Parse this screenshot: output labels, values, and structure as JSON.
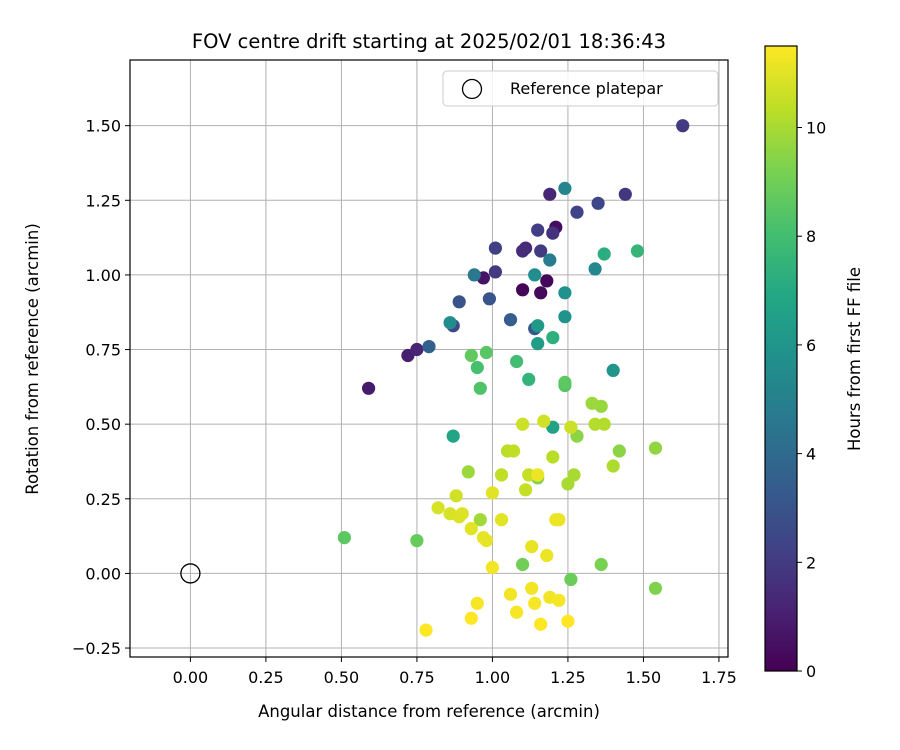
{
  "chart_data": {
    "type": "scatter",
    "title": "FOV centre drift starting at 2025/02/01 18:36:43",
    "xlabel": "Angular distance from reference (arcmin)",
    "ylabel": "Rotation from reference (arcmin)",
    "xlim": [
      -0.2,
      1.78
    ],
    "ylim": [
      -0.28,
      1.72
    ],
    "xticks": [
      0.0,
      0.25,
      0.5,
      0.75,
      1.0,
      1.25,
      1.5,
      1.75
    ],
    "xtick_labels": [
      "0.00",
      "0.25",
      "0.50",
      "0.75",
      "1.00",
      "1.25",
      "1.50",
      "1.75"
    ],
    "yticks": [
      -0.25,
      0.0,
      0.25,
      0.5,
      0.75,
      1.0,
      1.25,
      1.5
    ],
    "ytick_labels": [
      "−0.25",
      "0.00",
      "0.25",
      "0.50",
      "0.75",
      "1.00",
      "1.25",
      "1.50"
    ],
    "grid": true,
    "legend": {
      "position": "upper right",
      "entries": [
        "Reference platepar"
      ]
    },
    "reference_point": {
      "x": 0.0,
      "y": 0.0
    },
    "colorbar": {
      "label": "Hours from first FF file",
      "colormap": "viridis",
      "range": [
        0,
        11.5
      ],
      "ticks": [
        0,
        2,
        4,
        6,
        8,
        10
      ],
      "tick_labels": [
        "0",
        "2",
        "4",
        "6",
        "8",
        "10"
      ]
    },
    "points": [
      {
        "x": 1.1,
        "y": 0.95,
        "c": 0.1
      },
      {
        "x": 1.18,
        "y": 0.98,
        "c": 0.2
      },
      {
        "x": 1.16,
        "y": 0.94,
        "c": 0.3
      },
      {
        "x": 1.21,
        "y": 1.16,
        "c": 0.4
      },
      {
        "x": 0.97,
        "y": 0.99,
        "c": 0.6
      },
      {
        "x": 0.59,
        "y": 0.62,
        "c": 0.9
      },
      {
        "x": 0.72,
        "y": 0.73,
        "c": 1.0
      },
      {
        "x": 0.75,
        "y": 0.75,
        "c": 1.2
      },
      {
        "x": 1.19,
        "y": 1.27,
        "c": 1.3
      },
      {
        "x": 1.11,
        "y": 1.09,
        "c": 1.4
      },
      {
        "x": 1.1,
        "y": 1.08,
        "c": 1.5
      },
      {
        "x": 1.2,
        "y": 1.14,
        "c": 1.7
      },
      {
        "x": 1.44,
        "y": 1.27,
        "c": 1.9
      },
      {
        "x": 1.63,
        "y": 1.5,
        "c": 2.0
      },
      {
        "x": 1.16,
        "y": 1.08,
        "c": 2.0
      },
      {
        "x": 1.01,
        "y": 1.01,
        "c": 2.0
      },
      {
        "x": 1.15,
        "y": 1.15,
        "c": 2.1
      },
      {
        "x": 1.01,
        "y": 1.09,
        "c": 2.2
      },
      {
        "x": 1.28,
        "y": 1.21,
        "c": 2.3
      },
      {
        "x": 1.35,
        "y": 1.24,
        "c": 2.5
      },
      {
        "x": 0.87,
        "y": 0.83,
        "c": 2.5
      },
      {
        "x": 0.89,
        "y": 0.91,
        "c": 3.0
      },
      {
        "x": 0.99,
        "y": 0.92,
        "c": 3.0
      },
      {
        "x": 1.14,
        "y": 0.82,
        "c": 3.1
      },
      {
        "x": 1.06,
        "y": 0.85,
        "c": 3.4
      },
      {
        "x": 0.79,
        "y": 0.76,
        "c": 3.6
      },
      {
        "x": 0.94,
        "y": 1.0,
        "c": 4.6
      },
      {
        "x": 1.19,
        "y": 1.05,
        "c": 4.8
      },
      {
        "x": 1.24,
        "y": 1.29,
        "c": 5.2
      },
      {
        "x": 1.34,
        "y": 1.02,
        "c": 5.3
      },
      {
        "x": 1.14,
        "y": 1.0,
        "c": 5.6
      },
      {
        "x": 0.86,
        "y": 0.84,
        "c": 5.6
      },
      {
        "x": 1.24,
        "y": 0.94,
        "c": 5.8
      },
      {
        "x": 1.24,
        "y": 0.86,
        "c": 5.9
      },
      {
        "x": 1.4,
        "y": 0.68,
        "c": 6.0
      },
      {
        "x": 1.15,
        "y": 0.83,
        "c": 6.2
      },
      {
        "x": 1.15,
        "y": 0.77,
        "c": 6.4
      },
      {
        "x": 1.2,
        "y": 0.49,
        "c": 6.6
      },
      {
        "x": 0.87,
        "y": 0.46,
        "c": 6.8
      },
      {
        "x": 1.37,
        "y": 1.07,
        "c": 7.2
      },
      {
        "x": 1.2,
        "y": 0.79,
        "c": 7.3
      },
      {
        "x": 1.48,
        "y": 1.08,
        "c": 7.6
      },
      {
        "x": 1.12,
        "y": 0.65,
        "c": 7.5
      },
      {
        "x": 1.08,
        "y": 0.71,
        "c": 8.0
      },
      {
        "x": 0.95,
        "y": 0.69,
        "c": 8.1
      },
      {
        "x": 0.96,
        "y": 0.62,
        "c": 8.3
      },
      {
        "x": 1.24,
        "y": 0.63,
        "c": 8.4
      },
      {
        "x": 1.24,
        "y": 0.64,
        "c": 8.6
      },
      {
        "x": 0.93,
        "y": 0.73,
        "c": 8.7
      },
      {
        "x": 0.98,
        "y": 0.74,
        "c": 8.5
      },
      {
        "x": 0.51,
        "y": 0.12,
        "c": 8.6
      },
      {
        "x": 0.75,
        "y": 0.11,
        "c": 8.8
      },
      {
        "x": 1.26,
        "y": -0.02,
        "c": 8.9
      },
      {
        "x": 1.1,
        "y": 0.03,
        "c": 9.0
      },
      {
        "x": 1.36,
        "y": 0.03,
        "c": 9.2
      },
      {
        "x": 1.54,
        "y": -0.05,
        "c": 9.3
      },
      {
        "x": 1.15,
        "y": 0.32,
        "c": 9.4
      },
      {
        "x": 1.28,
        "y": 0.46,
        "c": 9.5
      },
      {
        "x": 1.42,
        "y": 0.41,
        "c": 9.5
      },
      {
        "x": 1.54,
        "y": 0.42,
        "c": 9.6
      },
      {
        "x": 1.36,
        "y": 0.56,
        "c": 9.7
      },
      {
        "x": 1.33,
        "y": 0.57,
        "c": 9.8
      },
      {
        "x": 0.92,
        "y": 0.34,
        "c": 9.8
      },
      {
        "x": 0.96,
        "y": 0.18,
        "c": 9.9
      },
      {
        "x": 1.25,
        "y": 0.3,
        "c": 10.0
      },
      {
        "x": 1.27,
        "y": 0.33,
        "c": 10.0
      },
      {
        "x": 1.4,
        "y": 0.36,
        "c": 10.1
      },
      {
        "x": 1.34,
        "y": 0.5,
        "c": 10.2
      },
      {
        "x": 1.37,
        "y": 0.5,
        "c": 10.2
      },
      {
        "x": 1.2,
        "y": 0.39,
        "c": 10.3
      },
      {
        "x": 1.05,
        "y": 0.41,
        "c": 10.3
      },
      {
        "x": 1.07,
        "y": 0.41,
        "c": 10.4
      },
      {
        "x": 1.03,
        "y": 0.33,
        "c": 10.4
      },
      {
        "x": 1.12,
        "y": 0.33,
        "c": 10.5
      },
      {
        "x": 1.11,
        "y": 0.28,
        "c": 10.5
      },
      {
        "x": 1.1,
        "y": 0.5,
        "c": 10.6
      },
      {
        "x": 1.26,
        "y": 0.49,
        "c": 10.6
      },
      {
        "x": 1.17,
        "y": 0.51,
        "c": 10.7
      },
      {
        "x": 0.88,
        "y": 0.26,
        "c": 10.7
      },
      {
        "x": 0.82,
        "y": 0.22,
        "c": 10.8
      },
      {
        "x": 0.86,
        "y": 0.2,
        "c": 10.8
      },
      {
        "x": 0.89,
        "y": 0.19,
        "c": 10.9
      },
      {
        "x": 0.9,
        "y": 0.2,
        "c": 10.9
      },
      {
        "x": 1.0,
        "y": 0.27,
        "c": 11.0
      },
      {
        "x": 1.03,
        "y": 0.18,
        "c": 11.0
      },
      {
        "x": 0.93,
        "y": 0.15,
        "c": 11.0
      },
      {
        "x": 0.97,
        "y": 0.12,
        "c": 11.1
      },
      {
        "x": 0.98,
        "y": 0.11,
        "c": 11.1
      },
      {
        "x": 1.13,
        "y": 0.09,
        "c": 11.1
      },
      {
        "x": 1.18,
        "y": 0.06,
        "c": 11.2
      },
      {
        "x": 1.21,
        "y": 0.18,
        "c": 11.2
      },
      {
        "x": 1.22,
        "y": 0.18,
        "c": 11.2
      },
      {
        "x": 1.15,
        "y": 0.33,
        "c": 11.2
      },
      {
        "x": 1.0,
        "y": 0.02,
        "c": 11.3
      },
      {
        "x": 1.06,
        "y": -0.07,
        "c": 11.3
      },
      {
        "x": 1.13,
        "y": -0.05,
        "c": 11.3
      },
      {
        "x": 1.19,
        "y": -0.08,
        "c": 11.3
      },
      {
        "x": 1.22,
        "y": -0.09,
        "c": 11.4
      },
      {
        "x": 0.95,
        "y": -0.1,
        "c": 11.4
      },
      {
        "x": 1.08,
        "y": -0.13,
        "c": 11.4
      },
      {
        "x": 1.14,
        "y": -0.1,
        "c": 11.4
      },
      {
        "x": 0.93,
        "y": -0.15,
        "c": 11.5
      },
      {
        "x": 1.16,
        "y": -0.17,
        "c": 11.5
      },
      {
        "x": 1.25,
        "y": -0.16,
        "c": 11.5
      },
      {
        "x": 0.78,
        "y": -0.19,
        "c": 11.5
      }
    ]
  }
}
